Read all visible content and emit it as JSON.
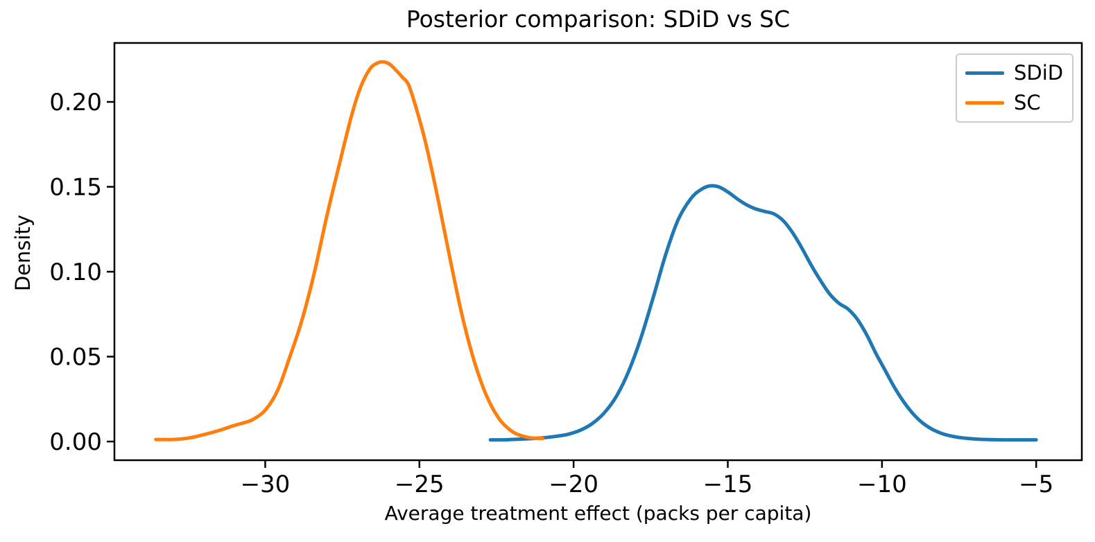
{
  "chart_data": {
    "type": "line",
    "subtype": "kde-density-posterior",
    "title": "Posterior comparison: SDiD vs SC",
    "xlabel": "Average treatment effect (packs per capita)",
    "ylabel": "Density",
    "xlim": [
      -34.89,
      -3.52
    ],
    "ylim": [
      -0.011,
      0.2347
    ],
    "x_ticks": [
      -30,
      -25,
      -20,
      -15,
      -10,
      -5
    ],
    "x_tick_labels": [
      "−30",
      "−25",
      "−20",
      "−15",
      "−10",
      "−5"
    ],
    "y_ticks": [
      0.0,
      0.05,
      0.1,
      0.15,
      0.2
    ],
    "y_tick_labels": [
      "0.00",
      "0.05",
      "0.10",
      "0.15",
      "0.20"
    ],
    "grid": false,
    "legend_position": "upper right",
    "background_color": "#ffffff",
    "spine_color": "#000000",
    "legend_border_color": "#cbcbcb",
    "series": [
      {
        "name": "SDiD",
        "color": "#1f77b4",
        "peak": {
          "x": -15.6,
          "y": 0.1505
        },
        "x": [
          -22.7,
          -22.3,
          -22.0,
          -21.5,
          -21.0,
          -20.6,
          -20.2,
          -19.8,
          -19.4,
          -19.0,
          -18.6,
          -18.2,
          -17.8,
          -17.4,
          -17.0,
          -16.6,
          -16.2,
          -15.9,
          -15.6,
          -15.3,
          -15.0,
          -14.7,
          -14.4,
          -14.1,
          -13.8,
          -13.5,
          -13.2,
          -12.9,
          -12.6,
          -12.3,
          -12.0,
          -11.7,
          -11.4,
          -11.1,
          -10.8,
          -10.5,
          -10.2,
          -9.9,
          -9.6,
          -9.3,
          -9.0,
          -8.7,
          -8.4,
          -8.1,
          -7.8,
          -7.5,
          -7.2,
          -6.8,
          -6.4,
          -6.0,
          -5.5,
          -5.0
        ],
        "y": [
          0.001,
          0.001,
          0.0012,
          0.0016,
          0.0022,
          0.003,
          0.0042,
          0.0065,
          0.0105,
          0.017,
          0.027,
          0.042,
          0.062,
          0.086,
          0.111,
          0.131,
          0.143,
          0.148,
          0.1505,
          0.15,
          0.147,
          0.143,
          0.1395,
          0.137,
          0.1355,
          0.134,
          0.13,
          0.123,
          0.114,
          0.104,
          0.095,
          0.087,
          0.0815,
          0.078,
          0.072,
          0.063,
          0.052,
          0.042,
          0.032,
          0.0235,
          0.0165,
          0.0112,
          0.0075,
          0.005,
          0.0034,
          0.0024,
          0.0018,
          0.0013,
          0.0011,
          0.001,
          0.001,
          0.001
        ]
      },
      {
        "name": "SC",
        "color": "#ff7f0e",
        "peak": {
          "x": -26.15,
          "y": 0.2235
        },
        "x": [
          -33.55,
          -33.0,
          -32.5,
          -32.0,
          -31.5,
          -31.0,
          -30.7,
          -30.4,
          -30.0,
          -29.6,
          -29.2,
          -28.8,
          -28.4,
          -28.0,
          -27.6,
          -27.2,
          -26.9,
          -26.6,
          -26.35,
          -26.15,
          -25.95,
          -25.75,
          -25.55,
          -25.35,
          -25.1,
          -24.8,
          -24.4,
          -24.0,
          -23.6,
          -23.2,
          -22.8,
          -22.4,
          -22.0,
          -21.7,
          -21.4,
          -21.0
        ],
        "y": [
          0.0012,
          0.0012,
          0.002,
          0.004,
          0.0065,
          0.0095,
          0.011,
          0.013,
          0.0185,
          0.03,
          0.05,
          0.072,
          0.1,
          0.133,
          0.163,
          0.192,
          0.209,
          0.2195,
          0.223,
          0.2235,
          0.222,
          0.2185,
          0.2145,
          0.21,
          0.196,
          0.176,
          0.143,
          0.107,
          0.073,
          0.046,
          0.026,
          0.013,
          0.006,
          0.0035,
          0.0022,
          0.0018
        ]
      }
    ]
  }
}
